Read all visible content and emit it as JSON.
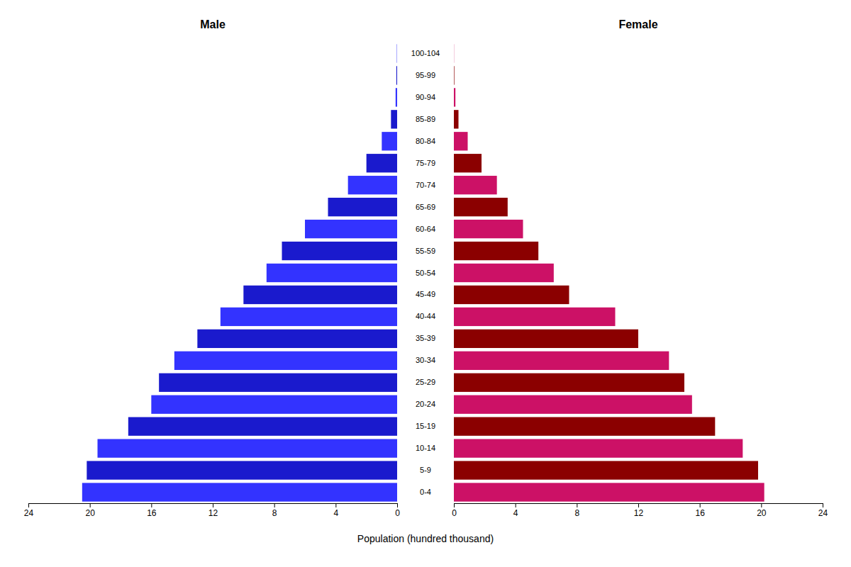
{
  "chart_data": {
    "type": "bar",
    "orientation": "horizontal",
    "xlabel": "Population (hundred thousand)",
    "categories": [
      "0-4",
      "5-9",
      "10-14",
      "15-19",
      "20-24",
      "25-29",
      "30-34",
      "35-39",
      "40-44",
      "45-49",
      "50-54",
      "55-59",
      "60-64",
      "65-69",
      "70-74",
      "75-79",
      "80-84",
      "85-89",
      "90-94",
      "95-99",
      "100-104"
    ],
    "series": [
      {
        "name": "Male",
        "colors": [
          "#3333FF",
          "#1A1ACD",
          "#3333FF",
          "#1A1ACD",
          "#3333FF",
          "#1A1ACD",
          "#3333FF",
          "#1A1ACD",
          "#3333FF",
          "#1A1ACD",
          "#3333FF",
          "#1A1ACD",
          "#3333FF",
          "#1A1ACD",
          "#3333FF",
          "#1A1ACD",
          "#3333FF",
          "#1A1ACD",
          "#3333FF",
          "#1A1ACD",
          "#3333FF"
        ],
        "values": [
          20.5,
          20.2,
          19.5,
          17.5,
          16.0,
          15.5,
          14.5,
          13.0,
          11.5,
          10.0,
          8.5,
          7.5,
          6.0,
          4.5,
          3.2,
          2.0,
          1.0,
          0.4,
          0.1,
          0.05,
          0.02
        ]
      },
      {
        "name": "Female",
        "colors": [
          "#CC1166",
          "#8B0000",
          "#CC1166",
          "#8B0000",
          "#CC1166",
          "#8B0000",
          "#CC1166",
          "#8B0000",
          "#CC1166",
          "#8B0000",
          "#CC1166",
          "#8B0000",
          "#CC1166",
          "#8B0000",
          "#CC1166",
          "#8B0000",
          "#CC1166",
          "#8B0000",
          "#CC1166",
          "#8B0000",
          "#CC1166"
        ],
        "values": [
          20.2,
          19.8,
          18.8,
          17.0,
          15.5,
          15.0,
          14.0,
          12.0,
          10.5,
          7.5,
          6.5,
          5.5,
          4.5,
          3.5,
          2.8,
          1.8,
          0.9,
          0.3,
          0.1,
          0.03,
          0.01
        ]
      }
    ],
    "xlim": [
      0,
      24
    ],
    "xticks": [
      0,
      4,
      8,
      12,
      16,
      20,
      24
    ]
  }
}
